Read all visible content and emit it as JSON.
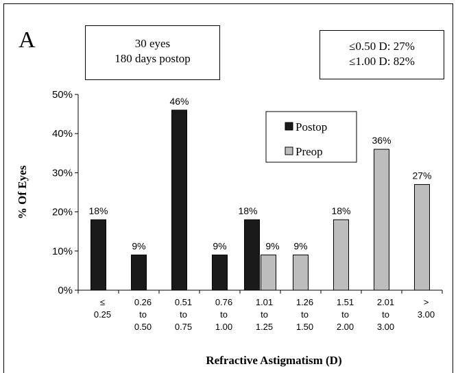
{
  "panel_label": "A",
  "info_box": {
    "line1": "30 eyes",
    "line2": "180 days postop"
  },
  "stats_box": {
    "line1": "≤0.50 D: 27%",
    "line2": "≤1.00 D: 82%"
  },
  "chart_data": {
    "type": "bar",
    "xlabel": "Refractive Astigmatism (D)",
    "ylabel": "% Of Eyes",
    "ylim": [
      0,
      50
    ],
    "yticks": [
      "0%",
      "10%",
      "20%",
      "30%",
      "40%",
      "50%"
    ],
    "grid": false,
    "legend_position": "top-right",
    "categories": [
      [
        "≤",
        "0.25"
      ],
      [
        "0.26",
        "to",
        "0.50"
      ],
      [
        "0.51",
        "to",
        "0.75"
      ],
      [
        "0.76",
        "to",
        "1.00"
      ],
      [
        "1.01",
        "to",
        "1.25"
      ],
      [
        "1.26",
        "to",
        "1.50"
      ],
      [
        "1.51",
        "to",
        "2.00"
      ],
      [
        "2.01",
        "to",
        "3.00"
      ],
      [
        ">",
        "3.00"
      ]
    ],
    "series": [
      {
        "name": "Postop",
        "color": "#1a1a1a",
        "values": [
          18,
          9,
          46,
          9,
          18,
          null,
          null,
          null,
          null
        ],
        "labels": [
          "18%",
          "9%",
          "46%",
          "9%",
          "18%",
          "",
          "",
          "",
          ""
        ]
      },
      {
        "name": "Preop",
        "color": "#bdbdbd",
        "values": [
          null,
          null,
          null,
          null,
          9,
          9,
          18,
          36,
          27
        ],
        "labels": [
          "",
          "",
          "",
          "",
          "9%",
          "9%",
          "18%",
          "36%",
          "27%"
        ]
      }
    ]
  }
}
